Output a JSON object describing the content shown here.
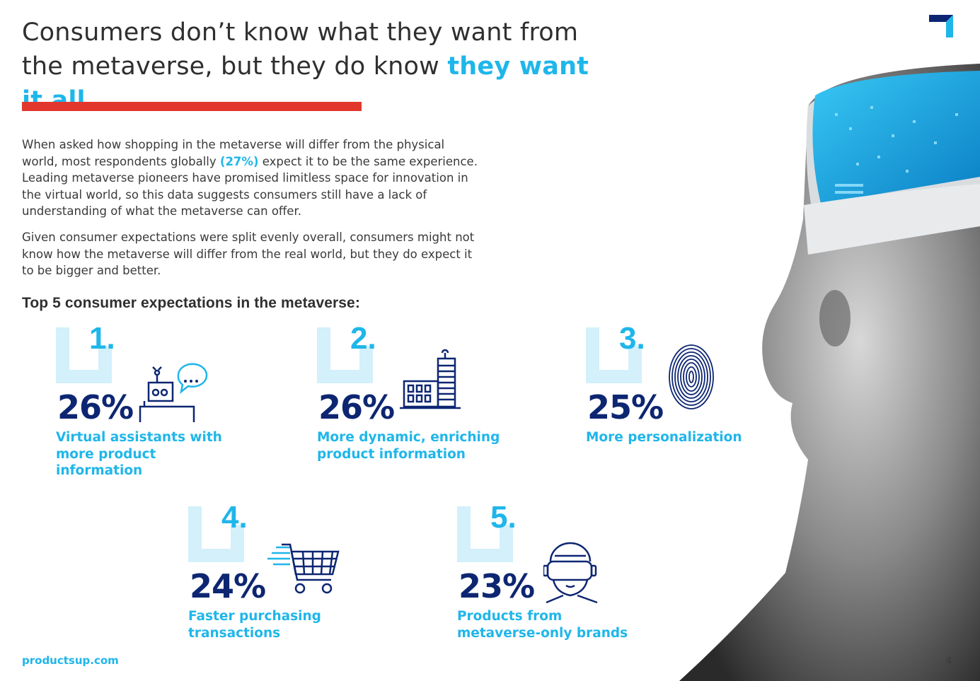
{
  "title": {
    "line_part1": "Consumers don’t know what they want from the metaverse, but they do know ",
    "highlight": "they want it all..."
  },
  "intro": {
    "p1_before": "When asked how shopping in the metaverse will differ from the physical world, most respondents globally ",
    "p1_pct": "(27%)",
    "p1_after": " expect it to be the same experience. Leading metaverse pioneers have promised limitless space for innovation in the virtual world, so this data suggests consumers still have a lack of understanding of what the metaverse can offer.",
    "p2": "Given consumer expectations were split evenly overall, consumers might not know how the metaverse will differ from the real world, but they do expect it to be bigger and better."
  },
  "subhead": "Top 5 consumer expectations in the metaverse:",
  "expectations": [
    {
      "rank": "1.",
      "percent": "26%",
      "label": "Virtual assistants with more product information",
      "icon": "virtual-assistant-icon"
    },
    {
      "rank": "2.",
      "percent": "26%",
      "label": "More dynamic, enriching product information",
      "icon": "building-icon"
    },
    {
      "rank": "3.",
      "percent": "25%",
      "label": "More personalization",
      "icon": "fingerprint-icon"
    },
    {
      "rank": "4.",
      "percent": "24%",
      "label": "Faster purchasing transactions",
      "icon": "shopping-cart-icon"
    },
    {
      "rank": "5.",
      "percent": "23%",
      "label": "Products from metaverse-only brands",
      "icon": "vr-headset-icon"
    }
  ],
  "footer": {
    "site": "productsup.com",
    "page": "4"
  },
  "colors": {
    "accent": "#1fb6ea",
    "navy": "#0d2672",
    "red": "#e2372c",
    "bracket": "#d3f0fb"
  }
}
